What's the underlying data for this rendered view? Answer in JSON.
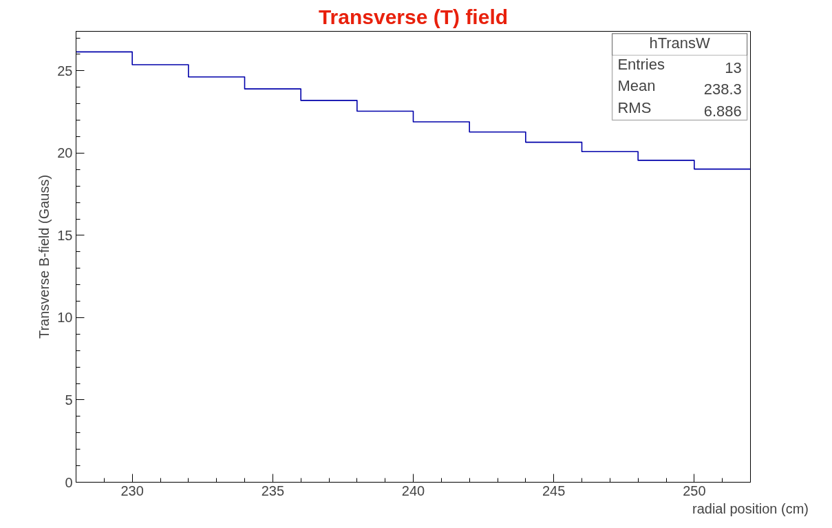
{
  "chart_data": {
    "type": "histogram",
    "title": "Transverse (T) field",
    "xlabel": "radial position (cm)",
    "ylabel": "Transverse B-field (Gauss)",
    "bins": [
      228,
      230,
      232,
      234,
      236,
      238,
      240,
      242,
      244,
      246,
      248,
      250,
      252
    ],
    "values": [
      26.15,
      25.37,
      24.63,
      23.9,
      23.2,
      22.55,
      21.9,
      21.28,
      20.66,
      20.09,
      19.56,
      19.03
    ],
    "color": "#0000aa",
    "xlim": [
      228,
      252
    ],
    "xticks": [
      230,
      235,
      240,
      245,
      250
    ],
    "ylim": [
      0,
      27.4
    ],
    "yticks": [
      0,
      5,
      10,
      15,
      20,
      25
    ],
    "grid": false,
    "annotations": [
      "hTransW",
      "Entries 13",
      "Mean 238.3",
      "RMS 6.886"
    ]
  }
}
